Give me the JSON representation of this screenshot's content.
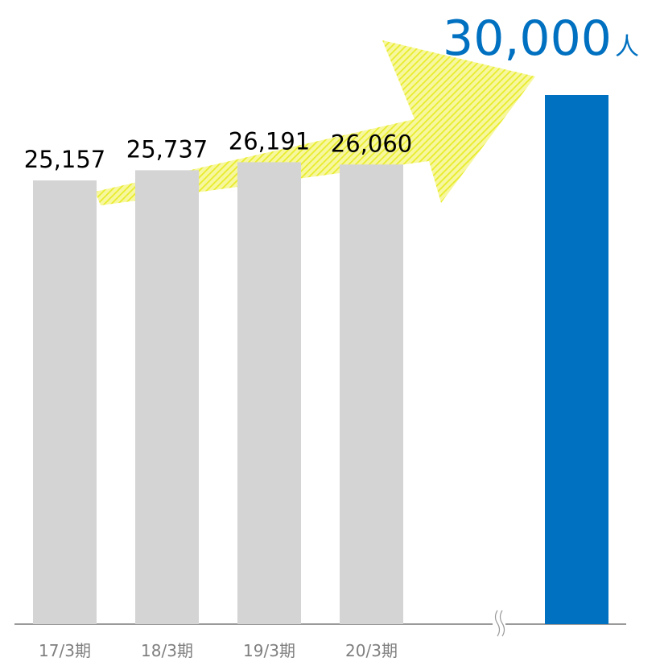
{
  "chart_data": {
    "type": "bar",
    "categories": [
      "17/3期",
      "18/3期",
      "19/3期",
      "20/3期",
      null
    ],
    "values": [
      25157,
      25737,
      26191,
      26060,
      30000
    ],
    "value_labels": [
      "25,157",
      "25,737",
      "26,191",
      "26,060",
      "30,000"
    ],
    "unit": "人",
    "colors": [
      "#d4d4d4",
      "#d4d4d4",
      "#d4d4d4",
      "#d4d4d4",
      "#0070c0"
    ],
    "ylim": [
      0,
      30000
    ]
  }
}
